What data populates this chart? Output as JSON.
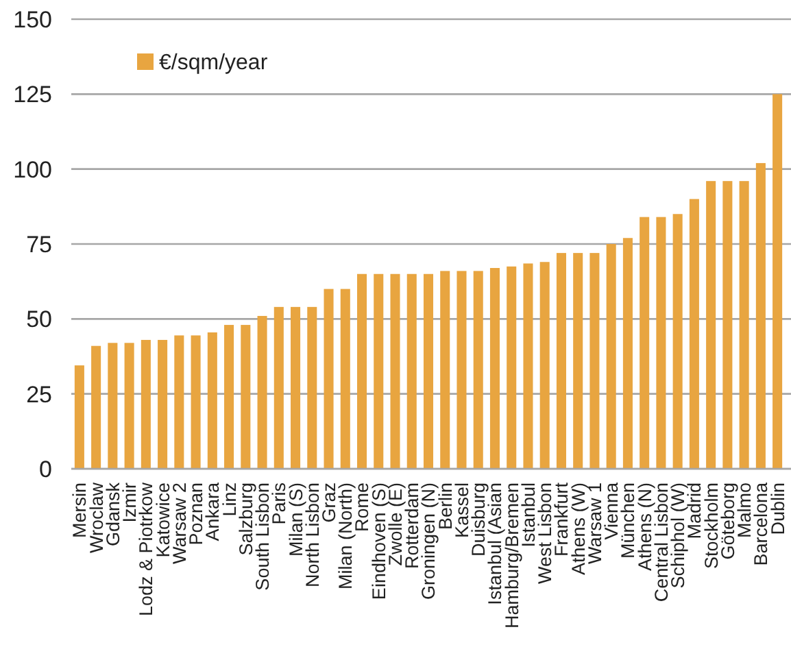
{
  "chart_data": {
    "type": "bar",
    "categories": [
      "Mersin",
      "Wroclaw",
      "Gdansk",
      "Izmir",
      "Lodz & Piotrkow",
      "Katowice",
      "Warsaw 2",
      "Poznan",
      "Ankara",
      "Linz",
      "Salzburg",
      "South Lisbon",
      "Paris",
      "Milan (S)",
      "North Lisbon",
      "Graz",
      "Milan (North)",
      "Rome",
      "Eindhoven (S)",
      "Zwolle (E)",
      "Rotterdam",
      "Groningen (N)",
      "Berlin",
      "Kassel",
      "Duisburg",
      "Istanbul (Asian",
      "Hamburg/Bremen",
      "Istanbul",
      "West Lisbon",
      "Frankfurt",
      "Athens (W)",
      "Warsaw 1",
      "Vienna",
      "München",
      "Athens (N)",
      "Central Lisbon",
      "Schiphol (W)",
      "Madrid",
      "Stockholm",
      "Göteborg",
      "Malmo",
      "Barcelona",
      "Dublin"
    ],
    "series": [
      {
        "name": "€/sqm/year",
        "color": "#e8a540",
        "values": [
          34.5,
          41,
          42,
          42,
          43,
          43,
          44.5,
          44.5,
          45.5,
          48,
          48,
          51,
          54,
          54,
          54,
          60,
          60,
          65,
          65,
          65,
          65,
          65,
          66,
          66,
          66,
          67,
          67.5,
          68.5,
          69,
          72,
          72,
          72,
          75,
          77,
          84,
          84,
          85,
          90,
          96,
          96,
          96,
          102,
          125
        ]
      }
    ],
    "ylim": [
      0,
      150
    ],
    "yticks": [
      0,
      25,
      50,
      75,
      100,
      125,
      150
    ],
    "grid": "y",
    "legend": "top left"
  }
}
